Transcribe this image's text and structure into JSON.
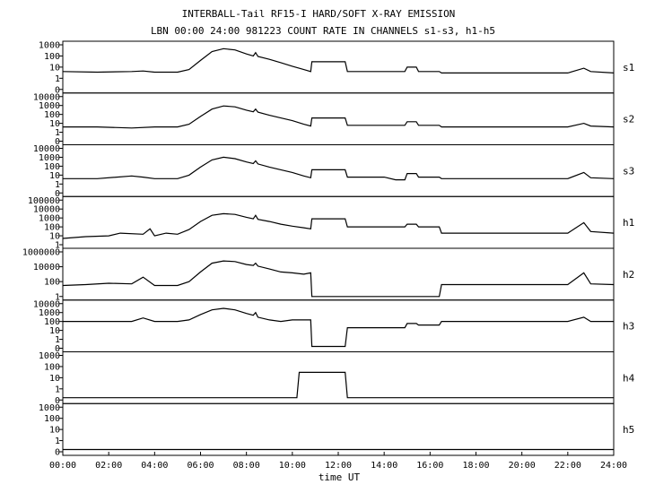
{
  "title_line1": "INTERBALL-Tail RF15-I HARD/SOFT X-RAY EMISSION",
  "title_line2": "LBN 00:00 24:00 981223  COUNT RATE IN CHANNELS s1-s3, h1-h5",
  "chart_data": {
    "type": "line",
    "title": "INTERBALL-Tail RF15-I HARD/SOFT X-RAY EMISSION",
    "subtitle": "LBN 00:00 24:00 981223  COUNT RATE IN CHANNELS s1-s3, h1-h5",
    "xlabel": "time UT",
    "xlim": [
      0,
      24
    ],
    "x_ticks": [
      "00:00",
      "02:00",
      "04:00",
      "06:00",
      "08:00",
      "10:00",
      "12:00",
      "14:00",
      "16:00",
      "18:00",
      "20:00",
      "22:00",
      "24:00"
    ],
    "y_scale": "log",
    "series": [
      {
        "name": "s1",
        "y_ticks": [
          "1000",
          "100",
          "10",
          "1",
          "0"
        ],
        "points": [
          [
            0,
            4
          ],
          [
            1.5,
            3.5
          ],
          [
            3,
            4
          ],
          [
            3.5,
            4.5
          ],
          [
            4,
            3.5
          ],
          [
            5,
            3.5
          ],
          [
            5.5,
            6
          ],
          [
            6,
            40
          ],
          [
            6.5,
            250
          ],
          [
            7,
            450
          ],
          [
            7.5,
            350
          ],
          [
            8,
            150
          ],
          [
            8.3,
            100
          ],
          [
            8.4,
            200
          ],
          [
            8.5,
            90
          ],
          [
            9,
            50
          ],
          [
            9.5,
            25
          ],
          [
            10,
            12
          ],
          [
            10.5,
            6
          ],
          [
            10.8,
            4
          ],
          [
            10.85,
            30
          ],
          [
            12.3,
            30
          ],
          [
            12.4,
            4
          ],
          [
            14.9,
            4
          ],
          [
            15,
            10
          ],
          [
            15.4,
            10
          ],
          [
            15.5,
            4
          ],
          [
            16.4,
            4
          ],
          [
            16.5,
            3
          ],
          [
            19,
            3
          ],
          [
            22,
            3
          ],
          [
            22.7,
            8
          ],
          [
            23,
            4
          ],
          [
            24,
            3
          ]
        ]
      },
      {
        "name": "s2",
        "y_ticks": [
          "10000",
          "1000",
          "100",
          "10",
          "1",
          "0"
        ],
        "points": [
          [
            0,
            4
          ],
          [
            1.5,
            4
          ],
          [
            3,
            3
          ],
          [
            4,
            4
          ],
          [
            5,
            4
          ],
          [
            5.5,
            8
          ],
          [
            6,
            60
          ],
          [
            6.5,
            400
          ],
          [
            7,
            900
          ],
          [
            7.5,
            700
          ],
          [
            8,
            300
          ],
          [
            8.3,
            200
          ],
          [
            8.4,
            400
          ],
          [
            8.5,
            180
          ],
          [
            9,
            80
          ],
          [
            9.5,
            40
          ],
          [
            10,
            20
          ],
          [
            10.5,
            8
          ],
          [
            10.8,
            5
          ],
          [
            10.85,
            40
          ],
          [
            12.3,
            40
          ],
          [
            12.4,
            6
          ],
          [
            14,
            6
          ],
          [
            14.9,
            6
          ],
          [
            15,
            15
          ],
          [
            15.4,
            15
          ],
          [
            15.5,
            6
          ],
          [
            16.4,
            6
          ],
          [
            16.5,
            4
          ],
          [
            19,
            4
          ],
          [
            22,
            4
          ],
          [
            22.7,
            10
          ],
          [
            23,
            5
          ],
          [
            24,
            4
          ]
        ]
      },
      {
        "name": "s3",
        "y_ticks": [
          "10000",
          "1000",
          "100",
          "10",
          "1",
          "0"
        ],
        "points": [
          [
            0,
            4
          ],
          [
            1.5,
            4
          ],
          [
            3,
            8
          ],
          [
            3.5,
            6
          ],
          [
            4,
            4
          ],
          [
            5,
            4
          ],
          [
            5.5,
            10
          ],
          [
            6,
            80
          ],
          [
            6.5,
            500
          ],
          [
            7,
            1000
          ],
          [
            7.5,
            700
          ],
          [
            8,
            300
          ],
          [
            8.3,
            200
          ],
          [
            8.4,
            400
          ],
          [
            8.5,
            180
          ],
          [
            9,
            80
          ],
          [
            9.5,
            40
          ],
          [
            10,
            20
          ],
          [
            10.5,
            8
          ],
          [
            10.8,
            5
          ],
          [
            10.85,
            40
          ],
          [
            12.3,
            40
          ],
          [
            12.4,
            6
          ],
          [
            14,
            6
          ],
          [
            14.5,
            3
          ],
          [
            14.9,
            3
          ],
          [
            15,
            15
          ],
          [
            15.4,
            15
          ],
          [
            15.5,
            6
          ],
          [
            16.4,
            6
          ],
          [
            16.5,
            4
          ],
          [
            19,
            4
          ],
          [
            22,
            4
          ],
          [
            22.7,
            20
          ],
          [
            23,
            5
          ],
          [
            24,
            4
          ]
        ]
      },
      {
        "name": "h1",
        "y_ticks": [
          "100000",
          "10000",
          "1000",
          "100",
          "10",
          "1"
        ],
        "points": [
          [
            0,
            5
          ],
          [
            1,
            8
          ],
          [
            2,
            10
          ],
          [
            2.5,
            20
          ],
          [
            3.5,
            15
          ],
          [
            3.8,
            60
          ],
          [
            4,
            10
          ],
          [
            4.5,
            20
          ],
          [
            5,
            15
          ],
          [
            5.5,
            50
          ],
          [
            6,
            400
          ],
          [
            6.5,
            2000
          ],
          [
            7,
            3000
          ],
          [
            7.5,
            2500
          ],
          [
            8,
            1200
          ],
          [
            8.3,
            800
          ],
          [
            8.4,
            2000
          ],
          [
            8.5,
            700
          ],
          [
            9,
            400
          ],
          [
            9.5,
            200
          ],
          [
            10,
            120
          ],
          [
            10.5,
            80
          ],
          [
            10.8,
            60
          ],
          [
            10.85,
            800
          ],
          [
            12.3,
            800
          ],
          [
            12.4,
            100
          ],
          [
            14,
            100
          ],
          [
            14.9,
            100
          ],
          [
            15,
            200
          ],
          [
            15.4,
            200
          ],
          [
            15.5,
            100
          ],
          [
            16.4,
            100
          ],
          [
            16.5,
            20
          ],
          [
            19,
            20
          ],
          [
            22,
            20
          ],
          [
            22.7,
            300
          ],
          [
            23,
            30
          ],
          [
            24,
            20
          ]
        ]
      },
      {
        "name": "h2",
        "y_ticks": [
          "1000000",
          "10000",
          "100",
          "1"
        ],
        "points": [
          [
            0,
            30
          ],
          [
            1,
            40
          ],
          [
            2,
            60
          ],
          [
            3,
            50
          ],
          [
            3.5,
            400
          ],
          [
            4,
            30
          ],
          [
            5,
            30
          ],
          [
            5.5,
            100
          ],
          [
            6,
            2000
          ],
          [
            6.5,
            30000
          ],
          [
            7,
            60000
          ],
          [
            7.5,
            50000
          ],
          [
            8,
            20000
          ],
          [
            8.3,
            15000
          ],
          [
            8.4,
            30000
          ],
          [
            8.5,
            12000
          ],
          [
            9,
            5000
          ],
          [
            9.5,
            2000
          ],
          [
            10,
            1500
          ],
          [
            10.5,
            1000
          ],
          [
            10.8,
            1500
          ],
          [
            10.85,
            0.4
          ],
          [
            14,
            0.4
          ],
          [
            14.9,
            0.4
          ],
          [
            16.4,
            0.4
          ],
          [
            16.5,
            40
          ],
          [
            19,
            40
          ],
          [
            22,
            40
          ],
          [
            22.7,
            1500
          ],
          [
            23,
            50
          ],
          [
            24,
            40
          ]
        ]
      },
      {
        "name": "h3",
        "y_ticks": [
          "10000",
          "1000",
          "100",
          "10",
          "1",
          "0"
        ],
        "points": [
          [
            0,
            100
          ],
          [
            3,
            100
          ],
          [
            3.5,
            250
          ],
          [
            4,
            100
          ],
          [
            5,
            100
          ],
          [
            5.5,
            150
          ],
          [
            6,
            600
          ],
          [
            6.5,
            2000
          ],
          [
            7,
            3000
          ],
          [
            7.5,
            2000
          ],
          [
            8,
            800
          ],
          [
            8.3,
            500
          ],
          [
            8.4,
            1000
          ],
          [
            8.5,
            300
          ],
          [
            9,
            150
          ],
          [
            9.5,
            100
          ],
          [
            10,
            150
          ],
          [
            10.5,
            150
          ],
          [
            10.8,
            150
          ],
          [
            10.85,
            0.4
          ],
          [
            12.3,
            0.4
          ],
          [
            12.4,
            20
          ],
          [
            14,
            20
          ],
          [
            14.9,
            20
          ],
          [
            15,
            60
          ],
          [
            15.4,
            60
          ],
          [
            15.5,
            40
          ],
          [
            16.4,
            40
          ],
          [
            16.5,
            100
          ],
          [
            19,
            100
          ],
          [
            22,
            100
          ],
          [
            22.7,
            300
          ],
          [
            23,
            100
          ],
          [
            24,
            100
          ]
        ]
      },
      {
        "name": "h4",
        "y_ticks": [
          "1000",
          "100",
          "10",
          "1",
          "0"
        ],
        "points": [
          [
            0,
            0.4
          ],
          [
            10.2,
            0.4
          ],
          [
            10.3,
            30
          ],
          [
            12.3,
            30
          ],
          [
            12.4,
            0.4
          ],
          [
            24,
            0.4
          ]
        ]
      },
      {
        "name": "h5",
        "y_ticks": [
          "1000",
          "100",
          "10",
          "1",
          "0"
        ],
        "points": [
          [
            0,
            0.4
          ],
          [
            24,
            0.4
          ]
        ]
      }
    ]
  }
}
